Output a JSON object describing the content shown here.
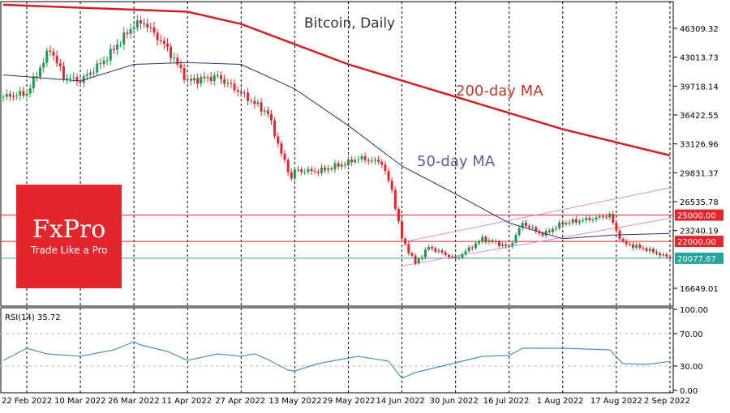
{
  "chart_data": {
    "type": "candlestick",
    "title": "Bitcoin, Daily",
    "annotations": [
      "200-day MA",
      "50-day MA"
    ],
    "price_axis": {
      "ticks": [
        "46309.32",
        "43013.73",
        "39718.14",
        "36422.55",
        "33126.96",
        "29831.37",
        "26535.78",
        "23240.19",
        "16649.01"
      ],
      "range": [
        14000,
        50500
      ]
    },
    "x_ticks": [
      "22 Feb 2022",
      "10 Mar 2022",
      "26 Mar 2022",
      "11 Apr 2022",
      "27 Apr 2022",
      "13 May 2022",
      "29 May 2022",
      "14 Jun 2022",
      "30 Jun 2022",
      "16 Jul 2022",
      "1 Aug 2022",
      "17 Aug 2022",
      "2 Sep 2022"
    ],
    "date_range": [
      "2022-02-15",
      "2022-09-02"
    ],
    "close_keypoints": [
      [
        "2022-02-15",
        38500
      ],
      [
        "2022-02-22",
        38900
      ],
      [
        "2022-03-01",
        44000
      ],
      [
        "2022-03-05",
        40800
      ],
      [
        "2022-03-10",
        40300
      ],
      [
        "2022-03-17",
        42600
      ],
      [
        "2022-03-26",
        46700
      ],
      [
        "2022-03-29",
        47000
      ],
      [
        "2022-04-05",
        44000
      ],
      [
        "2022-04-11",
        40300
      ],
      [
        "2022-04-20",
        40800
      ],
      [
        "2022-04-27",
        38900
      ],
      [
        "2022-05-05",
        36600
      ],
      [
        "2022-05-09",
        32000
      ],
      [
        "2022-05-12",
        29200
      ],
      [
        "2022-05-13",
        30100
      ],
      [
        "2022-05-20",
        30000
      ],
      [
        "2022-05-29",
        31000
      ],
      [
        "2022-06-01",
        31500
      ],
      [
        "2022-06-08",
        31000
      ],
      [
        "2022-06-11",
        27800
      ],
      [
        "2022-06-14",
        22300
      ],
      [
        "2022-06-18",
        19500
      ],
      [
        "2022-06-22",
        21350
      ],
      [
        "2022-06-30",
        20000
      ],
      [
        "2022-07-08",
        22300
      ],
      [
        "2022-07-16",
        21350
      ],
      [
        "2022-07-20",
        24100
      ],
      [
        "2022-07-26",
        22750
      ],
      [
        "2022-08-01",
        24100
      ],
      [
        "2022-08-10",
        24600
      ],
      [
        "2022-08-15",
        25000
      ],
      [
        "2022-08-17",
        23200
      ],
      [
        "2022-08-19",
        21800
      ],
      [
        "2022-08-26",
        21100
      ],
      [
        "2022-09-02",
        20077.67
      ]
    ],
    "ma200": [
      [
        "2022-02-15",
        49000
      ],
      [
        "2022-04-11",
        48200
      ],
      [
        "2022-04-27",
        46800
      ],
      [
        "2022-05-29",
        42200
      ],
      [
        "2022-06-30",
        38500
      ],
      [
        "2022-08-01",
        34800
      ],
      [
        "2022-09-02",
        31800
      ]
    ],
    "ma50": [
      [
        "2022-02-15",
        41000
      ],
      [
        "2022-03-10",
        40300
      ],
      [
        "2022-03-26",
        42200
      ],
      [
        "2022-04-11",
        42400
      ],
      [
        "2022-04-27",
        42200
      ],
      [
        "2022-05-13",
        39400
      ],
      [
        "2022-05-29",
        35200
      ],
      [
        "2022-06-14",
        30600
      ],
      [
        "2022-06-30",
        27400
      ],
      [
        "2022-07-16",
        24100
      ],
      [
        "2022-08-01",
        22300
      ],
      [
        "2022-08-17",
        22750
      ],
      [
        "2022-09-02",
        22900
      ]
    ],
    "channel": {
      "lower": [
        [
          "2022-06-14",
          19200
        ],
        [
          "2022-09-03",
          24700
        ]
      ],
      "upper": [
        [
          "2022-06-14",
          21900
        ],
        [
          "2022-09-03",
          28200
        ]
      ]
    },
    "levels": [
      {
        "value": 25000,
        "label": "25000.00",
        "color": "#e3262c"
      },
      {
        "value": 22000,
        "label": "22000.00",
        "color": "#e3262c"
      },
      {
        "value": 20077.67,
        "label": "20077.67",
        "color": "#26a69a"
      }
    ],
    "rsi": {
      "label": "RSI(14) 35.72",
      "ticks": [
        "100.00",
        "70.00",
        "30.00",
        "0.00"
      ],
      "points": [
        [
          "2022-02-15",
          37
        ],
        [
          "2022-02-22",
          52
        ],
        [
          "2022-02-28",
          45
        ],
        [
          "2022-03-10",
          42
        ],
        [
          "2022-03-20",
          50
        ],
        [
          "2022-03-26",
          60
        ],
        [
          "2022-03-28",
          56
        ],
        [
          "2022-04-05",
          48
        ],
        [
          "2022-04-11",
          37
        ],
        [
          "2022-04-20",
          45
        ],
        [
          "2022-04-27",
          42
        ],
        [
          "2022-05-01",
          45
        ],
        [
          "2022-05-05",
          38
        ],
        [
          "2022-05-11",
          25
        ],
        [
          "2022-05-13",
          24
        ],
        [
          "2022-05-20",
          33
        ],
        [
          "2022-05-29",
          40
        ],
        [
          "2022-06-01",
          42
        ],
        [
          "2022-06-10",
          36
        ],
        [
          "2022-06-14",
          15
        ],
        [
          "2022-06-18",
          22
        ],
        [
          "2022-06-30",
          34
        ],
        [
          "2022-07-08",
          42
        ],
        [
          "2022-07-16",
          43
        ],
        [
          "2022-07-20",
          52
        ],
        [
          "2022-08-01",
          52
        ],
        [
          "2022-08-15",
          50
        ],
        [
          "2022-08-19",
          33
        ],
        [
          "2022-08-26",
          32
        ],
        [
          "2022-09-02",
          35.72
        ]
      ]
    },
    "colors": {
      "up": "#1f9a4a",
      "down": "#e3262c",
      "ma200": "#d42020",
      "ma50": "#2b2d7a",
      "channel": "#d88ad8",
      "rsi": "#4a90c8"
    }
  },
  "logo": {
    "brand": "FxPro",
    "tagline": "Trade Like a Pro"
  }
}
